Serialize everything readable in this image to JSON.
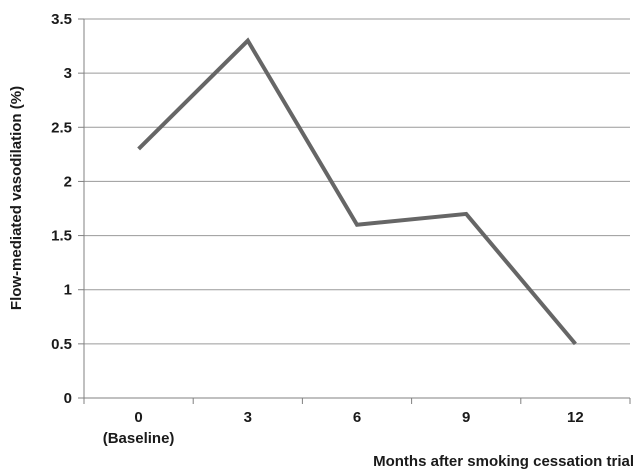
{
  "chart_data": {
    "type": "line",
    "title": "",
    "xlabel": "Months after smoking cessation trial",
    "ylabel": "Flow-mediated vasodilation (%)",
    "categories": [
      "0",
      "3",
      "6",
      "9",
      "12"
    ],
    "category_sublabels": [
      "(Baseline)",
      "",
      "",
      "",
      ""
    ],
    "series": [
      {
        "values": [
          2.3,
          3.3,
          1.6,
          1.7,
          0.5
        ]
      }
    ],
    "ylim": [
      0,
      3.5
    ],
    "yticks": [
      "0",
      "0.5",
      "1",
      "1.5",
      "2",
      "2.5",
      "3",
      "3.5"
    ],
    "grid": true,
    "legend": "none",
    "colors": {
      "line": "#666666",
      "grid": "#9a9a9a",
      "axis": "#808080"
    }
  }
}
